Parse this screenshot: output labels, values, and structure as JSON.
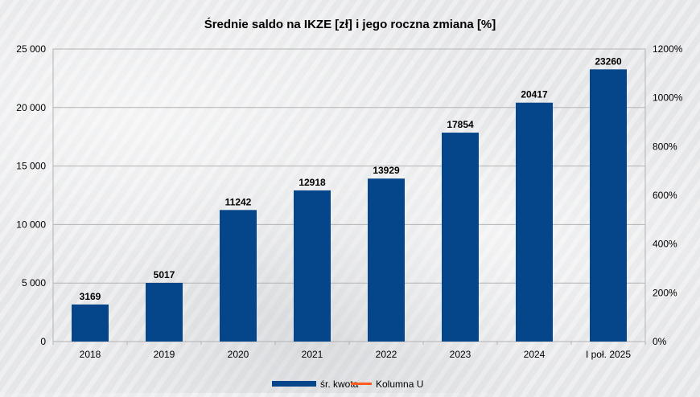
{
  "chart_data": {
    "type": "bar",
    "title": "Średnie saldo na IKZE [zł] i jego roczna zmiana [%]",
    "categories": [
      "2018",
      "2019",
      "2020",
      "2021",
      "2022",
      "2023",
      "2024",
      "I poł. 2025"
    ],
    "series": [
      {
        "name": "śr. kwota",
        "values": [
          3169,
          5017,
          11242,
          12918,
          13929,
          17854,
          20417,
          23260
        ],
        "color": "#05468b"
      }
    ],
    "secondary_series": {
      "name": "Kolumna U",
      "color": "#ff5a1f",
      "values": []
    },
    "ylim": [
      0,
      25000
    ],
    "yticks": [
      0,
      5000,
      10000,
      15000,
      20000,
      25000
    ],
    "ytick_labels": [
      "0",
      "5 000",
      "10 000",
      "15 000",
      "20 000",
      "25 000"
    ],
    "y2lim": [
      0,
      1200
    ],
    "y2ticks": [
      0,
      200,
      400,
      600,
      800,
      1000,
      1200
    ],
    "y2tick_labels": [
      "0%",
      "200%",
      "400%",
      "600%",
      "800%",
      "1000%",
      "1200%"
    ],
    "data_labels": [
      "3169",
      "5017",
      "11242",
      "12918",
      "13929",
      "17854",
      "20417",
      "23260"
    ],
    "grid": true,
    "legend_position": "bottom"
  }
}
